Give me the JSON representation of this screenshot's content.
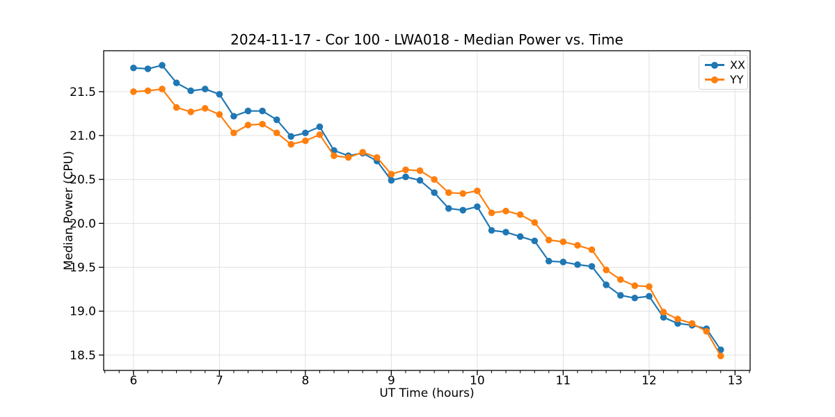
{
  "chart_data": {
    "type": "line",
    "title": "2024-11-17 - Cor 100 - LWA018 - Median Power vs. Time",
    "xlabel": "UT Time (hours)",
    "ylabel": "Median Power (CPU)",
    "xlim": [
      5.653,
      13.175
    ],
    "ylim": [
      18.325,
      21.966
    ],
    "xticks": [
      6,
      7,
      8,
      9,
      10,
      11,
      12,
      13
    ],
    "yticks": [
      18.5,
      19.0,
      19.5,
      20.0,
      20.5,
      21.0,
      21.5
    ],
    "x_minor_step": 0.166667,
    "grid": true,
    "grid_color": "#e0e0e0",
    "spine_color": "#000000",
    "legend": {
      "position": "upper-right"
    },
    "marker": "circle",
    "marker_radius": 4.8,
    "line_width": 2.2,
    "x": [
      6.0,
      6.167,
      6.333,
      6.5,
      6.667,
      6.833,
      7.0,
      7.167,
      7.333,
      7.5,
      7.667,
      7.833,
      8.0,
      8.167,
      8.333,
      8.5,
      8.667,
      8.833,
      9.0,
      9.167,
      9.333,
      9.5,
      9.667,
      9.833,
      10.0,
      10.167,
      10.333,
      10.5,
      10.667,
      10.833,
      11.0,
      11.167,
      11.333,
      11.5,
      11.667,
      11.833,
      12.0,
      12.167,
      12.333,
      12.5,
      12.667,
      12.833
    ],
    "series": [
      {
        "name": "XX",
        "color": "#1f77b4",
        "values": [
          21.77,
          21.76,
          21.8,
          21.6,
          21.51,
          21.53,
          21.47,
          21.22,
          21.28,
          21.28,
          21.18,
          20.99,
          21.03,
          21.1,
          20.83,
          20.77,
          20.8,
          20.71,
          20.49,
          20.53,
          20.49,
          20.35,
          20.17,
          20.15,
          20.19,
          19.92,
          19.9,
          19.85,
          19.8,
          19.57,
          19.56,
          19.53,
          19.51,
          19.3,
          19.18,
          19.15,
          19.17,
          18.93,
          18.86,
          18.84,
          18.8,
          18.56
        ]
      },
      {
        "name": "YY",
        "color": "#ff7f0e",
        "values": [
          21.5,
          21.51,
          21.53,
          21.32,
          21.27,
          21.31,
          21.24,
          21.03,
          21.12,
          21.13,
          21.03,
          20.9,
          20.94,
          21.01,
          20.77,
          20.75,
          20.81,
          20.75,
          20.56,
          20.61,
          20.6,
          20.5,
          20.35,
          20.34,
          20.37,
          20.12,
          20.14,
          20.1,
          20.01,
          19.81,
          19.79,
          19.75,
          19.7,
          19.47,
          19.36,
          19.29,
          19.28,
          18.99,
          18.91,
          18.86,
          18.77,
          18.49
        ]
      }
    ]
  }
}
